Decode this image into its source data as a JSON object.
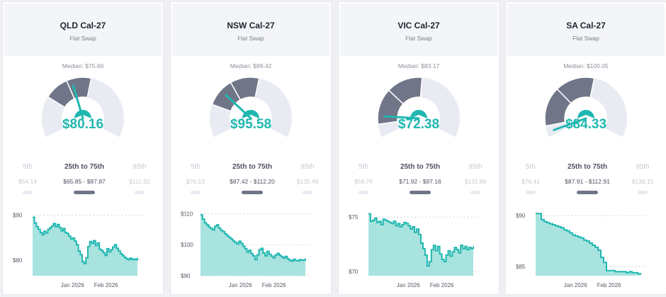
{
  "colors": {
    "accent": "#20b7b0",
    "gauge_dark": "#707688",
    "gauge_light": "#e9ebf2",
    "area_fill": "#a8e3df"
  },
  "cards": [
    {
      "title": "QLD Cal-27",
      "subtitle": "Flat Swap",
      "median_label": "Median: $75.60",
      "value": "$80.16",
      "gauge": {
        "band_low": 0.25,
        "band_high": 0.55,
        "needle": 0.43
      },
      "percentiles": [
        {
          "label": "5th",
          "value": "$54.14"
        },
        {
          "label": "25th to 75th",
          "value": "$65.85 - $87.87"
        },
        {
          "label": "95th",
          "value": "$111.92"
        }
      ],
      "chart_data": {
        "type": "area",
        "yticks": [
          "$90",
          "$80"
        ],
        "ytick_values": [
          90,
          80
        ],
        "ylim": [
          76.5,
          91
        ],
        "xticks": [
          "Jan 2026",
          "Feb 2026"
        ],
        "xtick_pos": [
          0.38,
          0.7
        ],
        "values": [
          89.5,
          88.2,
          87.4,
          86.8,
          86.1,
          85.6,
          86.4,
          86.0,
          86.8,
          87.2,
          87.6,
          88.1,
          87.4,
          87.9,
          87.2,
          86.5,
          87.0,
          86.1,
          85.9,
          85.3,
          84.7,
          84.9,
          84.2,
          83.4,
          82.0,
          81.2,
          79.6,
          79.2,
          80.5,
          83.0,
          84.1,
          83.7,
          84.3,
          83.2,
          83.8,
          82.4,
          82.1,
          81.6,
          81.0,
          82.5,
          81.8,
          82.3,
          82.9,
          83.4,
          82.6,
          82.0,
          81.4,
          81.0,
          80.6,
          80.3,
          80.1,
          80.4,
          80.1,
          80.2,
          80.1,
          80.5
        ]
      }
    },
    {
      "title": "NSW Cal-27",
      "subtitle": "Flat Swap",
      "median_label": "Median: $99.42",
      "value": "$95.58",
      "gauge": {
        "band_low": 0.2,
        "band_high": 0.55,
        "needle": 0.3
      },
      "percentiles": [
        {
          "label": "5th",
          "value": "$76.13"
        },
        {
          "label": "25th to 75th",
          "value": "$87.42 - $112.20"
        },
        {
          "label": "95th",
          "value": "$135.49"
        }
      ],
      "chart_data": {
        "type": "area",
        "yticks": [
          "$110",
          "$100",
          "$90"
        ],
        "ytick_values": [
          110,
          100,
          90
        ],
        "ylim": [
          90,
          111
        ],
        "xticks": [
          "Jan 2026",
          "Feb 2026"
        ],
        "xtick_pos": [
          0.38,
          0.7
        ],
        "values": [
          109.6,
          108.2,
          107.0,
          106.4,
          105.7,
          105.2,
          104.8,
          105.9,
          106.4,
          105.3,
          104.6,
          104.2,
          103.5,
          102.9,
          102.4,
          101.8,
          101.2,
          100.7,
          100.2,
          101.1,
          100.4,
          99.5,
          98.7,
          97.6,
          98.2,
          97.1,
          96.4,
          95.2,
          96.7,
          98.4,
          98.8,
          97.3,
          96.4,
          97.8,
          96.9,
          96.3,
          95.8,
          96.7,
          97.2,
          96.6,
          96.1,
          95.7,
          96.2,
          95.4,
          95.0,
          94.7,
          95.3,
          94.9,
          94.8,
          95.2,
          95.0,
          95.1,
          95.6
        ]
      }
    },
    {
      "title": "VIC Cal-27",
      "subtitle": "Flat Swap",
      "median_label": "Median: $83.17",
      "value": "$72.38",
      "gauge": {
        "band_low": 0.08,
        "band_high": 0.52,
        "needle": 0.13
      },
      "percentiles": [
        {
          "label": "5th",
          "value": "$59.76"
        },
        {
          "label": "25th to 75th",
          "value": "$71.92 - $97.16"
        },
        {
          "label": "95th",
          "value": "$131.68"
        }
      ],
      "chart_data": {
        "type": "area",
        "yticks": [
          "$75",
          "$70"
        ],
        "ytick_values": [
          75,
          70
        ],
        "ylim": [
          69.6,
          75.6
        ],
        "xticks": [
          "Jan 2026",
          "Feb 2026"
        ],
        "xtick_pos": [
          0.38,
          0.7
        ],
        "values": [
          75.3,
          74.6,
          74.7,
          74.9,
          74.5,
          74.6,
          74.3,
          74.8,
          74.7,
          74.6,
          74.5,
          74.4,
          74.6,
          74.2,
          74.4,
          74.1,
          74.3,
          74.5,
          74.4,
          74.2,
          73.9,
          74.1,
          73.6,
          73.9,
          73.4,
          72.6,
          72.1,
          71.5,
          70.5,
          70.9,
          72.0,
          72.4,
          71.9,
          72.3,
          71.6,
          71.1,
          70.9,
          71.5,
          71.9,
          71.4,
          71.8,
          72.2,
          72.0,
          71.7,
          72.4,
          72.1,
          72.3,
          72.0,
          72.2,
          72.1,
          72.3
        ]
      }
    },
    {
      "title": "SA Cal-27",
      "subtitle": "Flat Swap",
      "median_label": "Median: $100.05",
      "value": "$84.33",
      "gauge": {
        "band_low": 0.07,
        "band_high": 0.55,
        "needle": 0.03
      },
      "percentiles": [
        {
          "label": "5th",
          "value": "$76.41"
        },
        {
          "label": "25th to 75th",
          "value": "$87.91 - $112.91"
        },
        {
          "label": "95th",
          "value": "$138.15"
        }
      ],
      "chart_data": {
        "type": "area",
        "yticks": [
          "$90",
          "$85"
        ],
        "ytick_values": [
          90,
          85
        ],
        "ylim": [
          84.1,
          90.5
        ],
        "xticks": [
          "Jan 2026",
          "Feb 2026"
        ],
        "xtick_pos": [
          0.38,
          0.7
        ],
        "values": [
          90.2,
          90.2,
          89.6,
          89.4,
          89.3,
          89.2,
          89.1,
          89.0,
          88.9,
          88.8,
          88.6,
          88.5,
          88.3,
          88.1,
          88.0,
          87.9,
          87.8,
          87.6,
          87.5,
          87.3,
          87.1,
          86.9,
          86.6,
          85.9,
          85.4,
          84.6,
          84.6,
          84.6,
          84.5,
          84.5,
          84.5,
          84.5,
          84.4,
          84.5,
          84.4,
          84.4,
          84.3,
          84.2
        ]
      }
    }
  ]
}
